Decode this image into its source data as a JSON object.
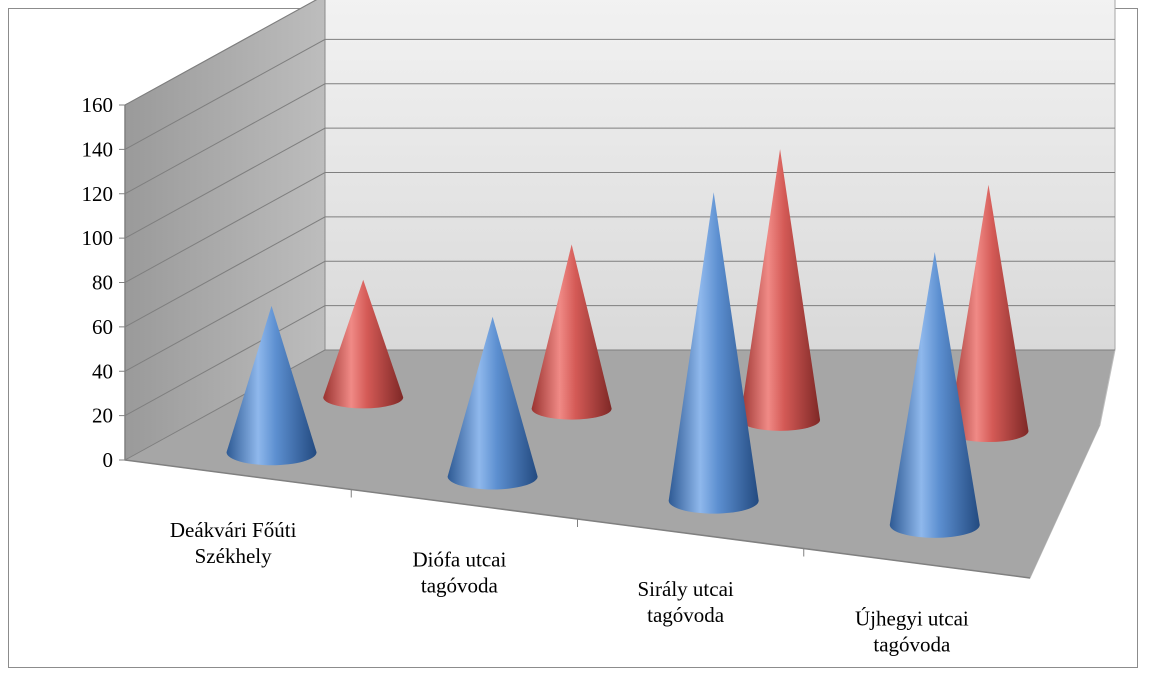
{
  "chart_data": {
    "type": "bar",
    "shape": "3d-cone",
    "categories": [
      "Deákvári Főúti Székhely",
      "Diófa utcai tagóvoda",
      "Sirály utcai tagóvoda",
      "Újhegyi utcai tagóvoda"
    ],
    "category_lines": [
      [
        "Deákvári Főúti",
        "Székhely"
      ],
      [
        "Diófa utcai",
        "tagóvoda"
      ],
      [
        "Sirály utcai",
        "tagóvoda"
      ],
      [
        "Újhegyi utcai",
        "tagóvoda"
      ]
    ],
    "series": [
      {
        "values": [
          66,
          72,
          139,
          123
        ],
        "color": "#4f81bd"
      },
      {
        "values": [
          53,
          74,
          122,
          111
        ],
        "color": "#c0504d"
      }
    ],
    "ylim": [
      0,
      160
    ],
    "y_ticks": [
      "0",
      "20",
      "40",
      "60",
      "80",
      "100",
      "120",
      "140",
      "160"
    ],
    "grid": true,
    "legend": "none"
  }
}
